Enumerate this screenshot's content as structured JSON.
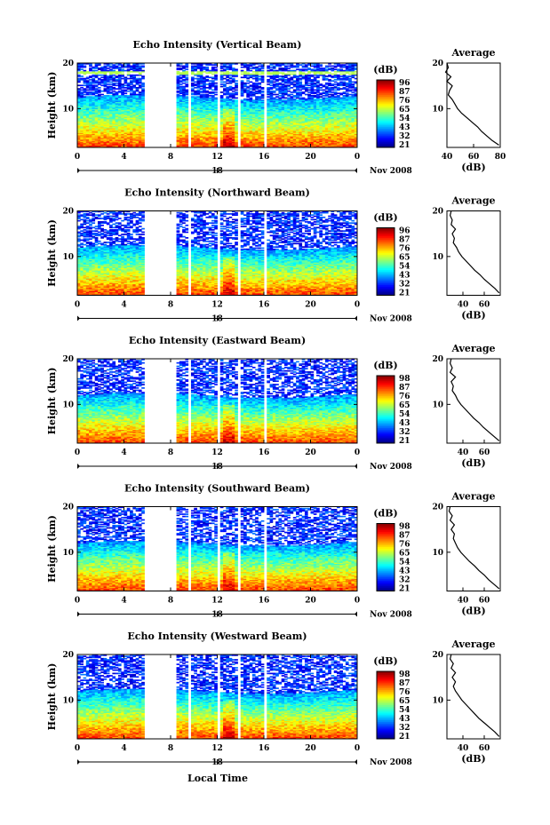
{
  "figure": {
    "xlabel": "Local Time",
    "date_label": "Nov 2008"
  },
  "chart_data": [
    {
      "type": "heatmap",
      "title": "Echo Intensity (Vertical Beam)",
      "ylabel": "Height (km)",
      "xlim": [
        0,
        24
      ],
      "ylim": [
        1.5,
        20
      ],
      "x_ticks": [
        "0",
        "4",
        "8",
        "12",
        "16",
        "20",
        "0"
      ],
      "y_ticks": [
        "10",
        "20"
      ],
      "day_marker": "18",
      "colorbar": {
        "label": "(dB)",
        "ticks": [
          "96",
          "87",
          "76",
          "65",
          "54",
          "43",
          "32",
          "21"
        ]
      },
      "data_gaps": [
        [
          5.8,
          8.5
        ],
        [
          9.6,
          9.85
        ],
        [
          12.0,
          12.25
        ],
        [
          13.8,
          14.05
        ],
        [
          16.1,
          16.35
        ]
      ],
      "average_panel": {
        "title": "Average",
        "xlabel": "(dB)",
        "xlim": [
          40,
          80
        ],
        "ylim": [
          1.5,
          20
        ],
        "x_ticks": [
          "40",
          "60",
          "80"
        ],
        "y_ticks": [
          "10",
          "20"
        ],
        "profile": [
          [
            2,
            79
          ],
          [
            3,
            74
          ],
          [
            4,
            70
          ],
          [
            5,
            66
          ],
          [
            6,
            63
          ],
          [
            7,
            59
          ],
          [
            8,
            55
          ],
          [
            9,
            51
          ],
          [
            10,
            48
          ],
          [
            11,
            46
          ],
          [
            12,
            44
          ],
          [
            13,
            41
          ],
          [
            14,
            42
          ],
          [
            15,
            44
          ],
          [
            16,
            40
          ],
          [
            17,
            43
          ],
          [
            18,
            39
          ],
          [
            19,
            41
          ],
          [
            20,
            40
          ]
        ]
      }
    },
    {
      "type": "heatmap",
      "title": "Echo Intensity (Northward Beam)",
      "ylabel": "Height (km)",
      "xlim": [
        0,
        24
      ],
      "ylim": [
        1.5,
        20
      ],
      "x_ticks": [
        "0",
        "4",
        "8",
        "12",
        "16",
        "20",
        "0"
      ],
      "y_ticks": [
        "10",
        "20"
      ],
      "day_marker": "18",
      "colorbar": {
        "label": "(dB)",
        "ticks": [
          "96",
          "87",
          "76",
          "65",
          "54",
          "43",
          "32",
          "21"
        ]
      },
      "data_gaps": [
        [
          5.8,
          8.5
        ],
        [
          9.6,
          9.85
        ],
        [
          12.0,
          12.25
        ],
        [
          13.8,
          14.05
        ],
        [
          16.1,
          16.35
        ]
      ],
      "average_panel": {
        "title": "Average",
        "xlabel": "(dB)",
        "xlim": [
          25,
          75
        ],
        "ylim": [
          1.5,
          20
        ],
        "x_ticks": [
          "40",
          "60"
        ],
        "y_ticks": [
          "10",
          "20"
        ],
        "profile": [
          [
            2,
            74
          ],
          [
            3,
            70
          ],
          [
            4,
            65
          ],
          [
            5,
            60
          ],
          [
            6,
            56
          ],
          [
            7,
            51
          ],
          [
            8,
            47
          ],
          [
            9,
            43
          ],
          [
            10,
            39
          ],
          [
            11,
            36
          ],
          [
            12,
            34
          ],
          [
            13,
            31
          ],
          [
            14,
            32
          ],
          [
            15,
            30
          ],
          [
            16,
            33
          ],
          [
            17,
            29
          ],
          [
            18,
            30
          ],
          [
            19,
            28
          ],
          [
            20,
            29
          ]
        ]
      }
    },
    {
      "type": "heatmap",
      "title": "Echo Intensity (Eastward Beam)",
      "ylabel": "Height (km)",
      "xlim": [
        0,
        24
      ],
      "ylim": [
        1.5,
        20
      ],
      "x_ticks": [
        "0",
        "4",
        "8",
        "12",
        "16",
        "20",
        "0"
      ],
      "y_ticks": [
        "10",
        "20"
      ],
      "day_marker": "18",
      "colorbar": {
        "label": "(dB)",
        "ticks": [
          "98",
          "87",
          "76",
          "65",
          "54",
          "43",
          "32",
          "21"
        ]
      },
      "data_gaps": [
        [
          5.8,
          8.5
        ],
        [
          9.6,
          9.85
        ],
        [
          12.0,
          12.25
        ],
        [
          13.8,
          14.05
        ],
        [
          16.1,
          16.35
        ]
      ],
      "average_panel": {
        "title": "Average",
        "xlabel": "(dB)",
        "xlim": [
          25,
          75
        ],
        "ylim": [
          1.5,
          20
        ],
        "x_ticks": [
          "40",
          "60"
        ],
        "y_ticks": [
          "10",
          "20"
        ],
        "profile": [
          [
            2,
            74
          ],
          [
            3,
            69
          ],
          [
            4,
            64
          ],
          [
            5,
            59
          ],
          [
            6,
            55
          ],
          [
            7,
            50
          ],
          [
            8,
            46
          ],
          [
            9,
            42
          ],
          [
            10,
            38
          ],
          [
            11,
            35
          ],
          [
            12,
            33
          ],
          [
            13,
            30
          ],
          [
            14,
            31
          ],
          [
            15,
            29
          ],
          [
            16,
            33
          ],
          [
            17,
            28
          ],
          [
            18,
            30
          ],
          [
            19,
            28
          ],
          [
            20,
            29
          ]
        ]
      }
    },
    {
      "type": "heatmap",
      "title": "Echo Intensity (Southward Beam)",
      "ylabel": "Height (km)",
      "xlim": [
        0,
        24
      ],
      "ylim": [
        1.5,
        20
      ],
      "x_ticks": [
        "0",
        "4",
        "8",
        "12",
        "16",
        "20",
        "0"
      ],
      "y_ticks": [
        "10",
        "20"
      ],
      "day_marker": "18",
      "colorbar": {
        "label": "(dB)",
        "ticks": [
          "98",
          "87",
          "76",
          "65",
          "54",
          "43",
          "32",
          "21"
        ]
      },
      "data_gaps": [
        [
          5.8,
          8.5
        ],
        [
          9.6,
          9.85
        ],
        [
          12.0,
          12.25
        ],
        [
          13.8,
          14.05
        ],
        [
          16.1,
          16.35
        ]
      ],
      "average_panel": {
        "title": "Average",
        "xlabel": "(dB)",
        "xlim": [
          25,
          75
        ],
        "ylim": [
          1.5,
          20
        ],
        "x_ticks": [
          "40",
          "60"
        ],
        "y_ticks": [
          "10",
          "20"
        ],
        "profile": [
          [
            2,
            74
          ],
          [
            3,
            69
          ],
          [
            4,
            64
          ],
          [
            5,
            60
          ],
          [
            6,
            55
          ],
          [
            7,
            51
          ],
          [
            8,
            46
          ],
          [
            9,
            42
          ],
          [
            10,
            38
          ],
          [
            11,
            35
          ],
          [
            12,
            33
          ],
          [
            13,
            31
          ],
          [
            14,
            32
          ],
          [
            15,
            29
          ],
          [
            16,
            32
          ],
          [
            17,
            28
          ],
          [
            18,
            30
          ],
          [
            19,
            27
          ],
          [
            20,
            28
          ]
        ]
      }
    },
    {
      "type": "heatmap",
      "title": "Echo Intensity (Westward Beam)",
      "ylabel": "Height (km)",
      "xlim": [
        0,
        24
      ],
      "ylim": [
        1.5,
        20
      ],
      "x_ticks": [
        "0",
        "4",
        "8",
        "12",
        "16",
        "20",
        "0"
      ],
      "y_ticks": [
        "10",
        "20"
      ],
      "day_marker": "18",
      "colorbar": {
        "label": "(dB)",
        "ticks": [
          "98",
          "87",
          "76",
          "65",
          "54",
          "43",
          "32",
          "21"
        ]
      },
      "data_gaps": [
        [
          5.8,
          8.5
        ],
        [
          9.6,
          9.85
        ],
        [
          12.0,
          12.25
        ],
        [
          13.8,
          14.05
        ],
        [
          16.1,
          16.35
        ]
      ],
      "average_panel": {
        "title": "Average",
        "xlabel": "(dB)",
        "xlim": [
          25,
          75
        ],
        "ylim": [
          1.5,
          20
        ],
        "x_ticks": [
          "40",
          "60"
        ],
        "y_ticks": [
          "10",
          "20"
        ],
        "profile": [
          [
            2,
            74
          ],
          [
            3,
            70
          ],
          [
            4,
            65
          ],
          [
            5,
            60
          ],
          [
            6,
            55
          ],
          [
            7,
            51
          ],
          [
            8,
            47
          ],
          [
            9,
            43
          ],
          [
            10,
            39
          ],
          [
            11,
            36
          ],
          [
            12,
            33
          ],
          [
            13,
            31
          ],
          [
            14,
            33
          ],
          [
            15,
            30
          ],
          [
            16,
            33
          ],
          [
            17,
            29
          ],
          [
            18,
            31
          ],
          [
            19,
            28
          ],
          [
            20,
            29
          ]
        ]
      }
    }
  ]
}
